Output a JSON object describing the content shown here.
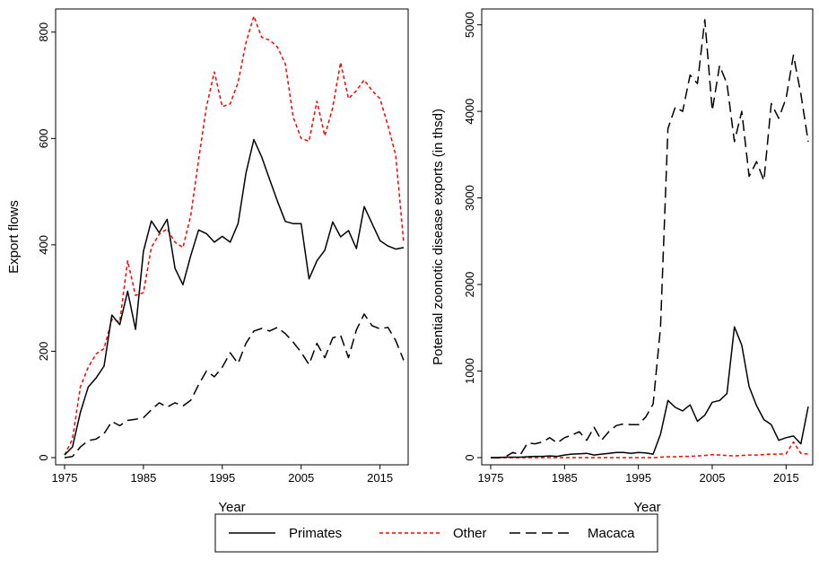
{
  "legend": [
    {
      "series": "Primates",
      "label": "Primates"
    },
    {
      "series": "Other",
      "label": "Other"
    },
    {
      "series": "Macaca",
      "label": "Macaca"
    }
  ],
  "colors": {
    "Primates": "#000000",
    "Other": "#ff0000",
    "Macaca": "#000000"
  },
  "chart_data": [
    {
      "type": "line",
      "xlabel": "Year",
      "ylabel": "Export flows",
      "xlim": [
        1975,
        2018
      ],
      "ylim": [
        0,
        830
      ],
      "x_ticks": [
        1975,
        1985,
        1995,
        2005,
        2015
      ],
      "y_ticks": [
        0,
        200,
        400,
        600,
        800
      ],
      "x": [
        1975,
        1976,
        1977,
        1978,
        1979,
        1980,
        1981,
        1982,
        1983,
        1984,
        1985,
        1986,
        1987,
        1988,
        1989,
        1990,
        1991,
        1992,
        1993,
        1994,
        1995,
        1996,
        1997,
        1998,
        1999,
        2000,
        2001,
        2002,
        2003,
        2004,
        2005,
        2006,
        2007,
        2008,
        2009,
        2010,
        2011,
        2012,
        2013,
        2014,
        2015,
        2016,
        2017,
        2018
      ],
      "series": [
        {
          "name": "Primates",
          "style": "solid",
          "values": [
            5,
            20,
            85,
            133,
            150,
            172,
            268,
            250,
            313,
            241,
            388,
            445,
            423,
            448,
            356,
            325,
            380,
            428,
            421,
            405,
            416,
            405,
            440,
            535,
            598,
            565,
            523,
            482,
            444,
            440,
            440,
            336,
            370,
            390,
            443,
            415,
            427,
            393,
            472,
            440,
            408,
            398,
            392,
            395
          ]
        },
        {
          "name": "Other",
          "style": "dotted",
          "values": [
            5,
            35,
            133,
            170,
            195,
            205,
            260,
            255,
            370,
            305,
            310,
            395,
            420,
            430,
            405,
            395,
            455,
            560,
            660,
            725,
            660,
            665,
            705,
            780,
            830,
            790,
            785,
            772,
            740,
            640,
            600,
            595,
            670,
            605,
            658,
            743,
            675,
            690,
            710,
            690,
            675,
            625,
            568,
            405
          ]
        },
        {
          "name": "Macaca",
          "style": "dashed",
          "values": [
            0,
            2,
            20,
            32,
            35,
            45,
            68,
            60,
            70,
            72,
            75,
            90,
            103,
            95,
            103,
            97,
            108,
            137,
            163,
            152,
            170,
            197,
            177,
            215,
            238,
            243,
            238,
            245,
            233,
            217,
            198,
            175,
            215,
            188,
            225,
            230,
            188,
            240,
            270,
            248,
            242,
            245,
            220,
            183
          ]
        }
      ]
    },
    {
      "type": "line",
      "xlabel": "Year",
      "ylabel": "Potential zoonotic disease exports (in thsd)",
      "xlim": [
        1975,
        2018
      ],
      "ylim": [
        0,
        5100
      ],
      "x_ticks": [
        1975,
        1985,
        1995,
        2005,
        2015
      ],
      "y_ticks": [
        0,
        1000,
        2000,
        3000,
        4000,
        5000
      ],
      "x": [
        1975,
        1976,
        1977,
        1978,
        1979,
        1980,
        1981,
        1982,
        1983,
        1984,
        1985,
        1986,
        1987,
        1988,
        1989,
        1990,
        1991,
        1992,
        1993,
        1994,
        1995,
        1996,
        1997,
        1998,
        1999,
        2000,
        2001,
        2002,
        2003,
        2004,
        2005,
        2006,
        2007,
        2008,
        2009,
        2010,
        2011,
        2012,
        2013,
        2014,
        2015,
        2016,
        2017,
        2018
      ],
      "series": [
        {
          "name": "Primates",
          "style": "solid",
          "values": [
            0,
            0,
            5,
            5,
            5,
            10,
            15,
            15,
            20,
            15,
            30,
            40,
            45,
            50,
            30,
            40,
            50,
            60,
            60,
            50,
            60,
            55,
            40,
            270,
            660,
            580,
            540,
            610,
            420,
            490,
            640,
            660,
            740,
            1510,
            1300,
            820,
            600,
            440,
            380,
            200,
            230,
            250,
            160,
            590
          ]
        },
        {
          "name": "Other",
          "style": "dotted",
          "values": [
            0,
            0,
            0,
            0,
            0,
            0,
            0,
            0,
            0,
            0,
            0,
            0,
            0,
            0,
            0,
            0,
            0,
            0,
            0,
            0,
            0,
            0,
            0,
            5,
            10,
            10,
            15,
            15,
            20,
            25,
            35,
            30,
            25,
            20,
            25,
            30,
            30,
            35,
            40,
            40,
            45,
            180,
            50,
            40
          ]
        },
        {
          "name": "Macaca",
          "style": "dashed",
          "values": [
            0,
            0,
            10,
            60,
            30,
            170,
            160,
            180,
            230,
            170,
            230,
            260,
            300,
            200,
            350,
            200,
            300,
            370,
            390,
            380,
            380,
            470,
            620,
            1500,
            3800,
            4050,
            4000,
            4420,
            4320,
            5060,
            4010,
            4530,
            4320,
            3650,
            4000,
            3250,
            3420,
            3200,
            4090,
            3920,
            4150,
            4650,
            4200,
            3650
          ]
        }
      ]
    }
  ]
}
